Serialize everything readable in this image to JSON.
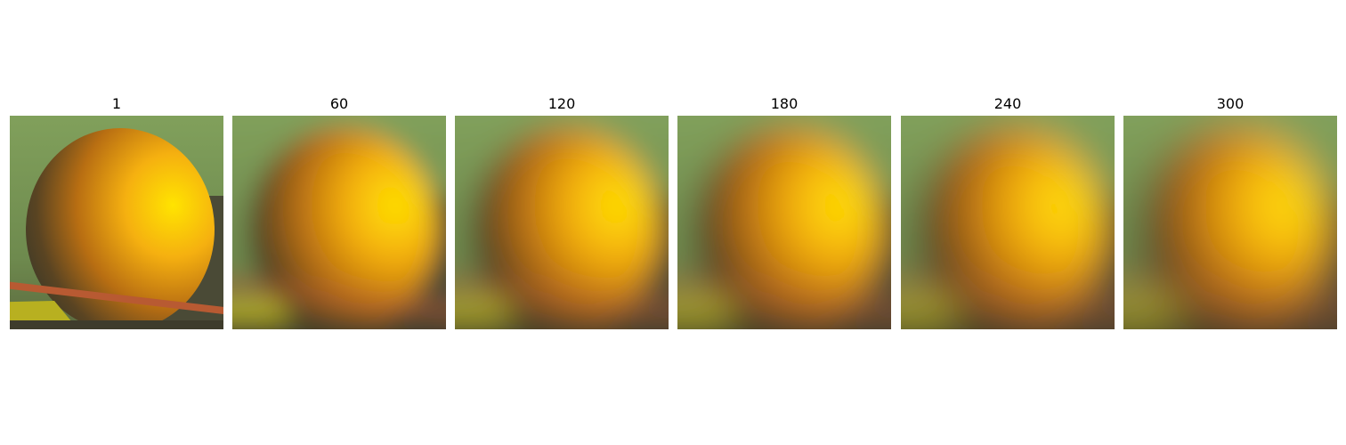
{
  "panels": [
    {
      "title": "1"
    },
    {
      "title": "60"
    },
    {
      "title": "120"
    },
    {
      "title": "180"
    },
    {
      "title": "240"
    },
    {
      "title": "300"
    }
  ]
}
